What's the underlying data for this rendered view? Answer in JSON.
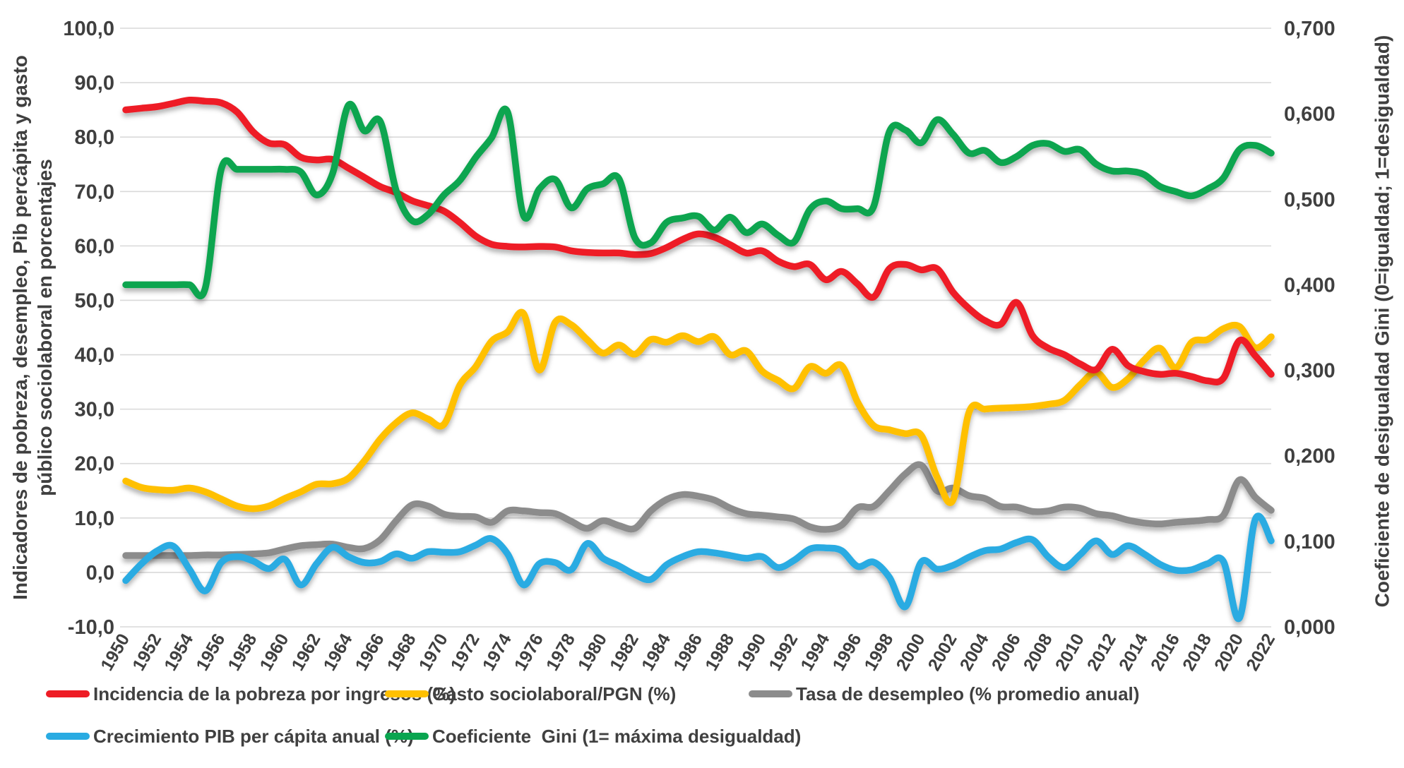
{
  "chart_data": {
    "type": "line",
    "title": "",
    "colors": {
      "poverty": "#ee1c25",
      "social_spending": "#ffc000",
      "unemployment": "#8c8c8c",
      "gdp_growth": "#29abe2",
      "gini": "#0aa550",
      "gridline": "#d9d9d9",
      "text": "#3f3f3f"
    },
    "years": [
      1950,
      1951,
      1952,
      1953,
      1954,
      1955,
      1956,
      1957,
      1958,
      1959,
      1960,
      1961,
      1962,
      1963,
      1964,
      1965,
      1966,
      1967,
      1968,
      1969,
      1970,
      1971,
      1972,
      1973,
      1974,
      1975,
      1976,
      1977,
      1978,
      1979,
      1980,
      1981,
      1982,
      1983,
      1984,
      1985,
      1986,
      1987,
      1988,
      1989,
      1990,
      1991,
      1992,
      1993,
      1994,
      1995,
      1996,
      1997,
      1998,
      1999,
      2000,
      2001,
      2002,
      2003,
      2004,
      2005,
      2006,
      2007,
      2008,
      2009,
      2010,
      2011,
      2012,
      2013,
      2014,
      2015,
      2016,
      2017,
      2018,
      2019,
      2020,
      2021,
      2022
    ],
    "x_tick_labels": [
      "1950",
      "1952",
      "1954",
      "1956",
      "1958",
      "1960",
      "1962",
      "1964",
      "1966",
      "1968",
      "1970",
      "1972",
      "1974",
      "1976",
      "1978",
      "1980",
      "1982",
      "1984",
      "1986",
      "1988",
      "1990",
      "1992",
      "1994",
      "1996",
      "1998",
      "2000",
      "2002",
      "2004",
      "2006",
      "2008",
      "2010",
      "2012",
      "2014",
      "2016",
      "2018",
      "2020",
      "2022"
    ],
    "left_axis": {
      "title": "Indicadores de pobreza, desempleo, Pib percápita y gasto público sociolaboral en porcentajes",
      "min": -10,
      "max": 100,
      "tick_step": 10,
      "tick_labels": [
        "100,0",
        "90,0",
        "80,0",
        "70,0",
        "60,0",
        "50,0",
        "40,0",
        "30,0",
        "20,0",
        "10,0",
        "0,0",
        "-10,0"
      ]
    },
    "right_axis": {
      "title": "Coeficiente de desigualdad Gini (0=igualdad; 1=desigualdad)",
      "min": 0.0,
      "max": 0.7,
      "tick_step": 0.1,
      "tick_labels": [
        "0,700",
        "0,600",
        "0,500",
        "0,400",
        "0,300",
        "0,200",
        "0,100",
        "0,000"
      ]
    },
    "grid": true,
    "legend_position": "bottom",
    "series": [
      {
        "name": "Incidencia de la pobreza por ingresos (%)",
        "axis": "left",
        "color_key": "poverty",
        "values": [
          85.0,
          85.3,
          85.6,
          86.2,
          86.8,
          86.6,
          86.3,
          84.6,
          81.0,
          78.9,
          78.6,
          76.3,
          75.8,
          75.9,
          74.3,
          72.6,
          70.9,
          69.8,
          68.3,
          67.4,
          66.4,
          64.3,
          61.8,
          60.3,
          59.9,
          59.8,
          59.9,
          59.8,
          59.1,
          58.8,
          58.7,
          58.7,
          58.4,
          58.6,
          59.7,
          61.2,
          62.2,
          61.6,
          60.2,
          58.7,
          59.1,
          57.2,
          56.2,
          56.6,
          53.8,
          55.3,
          53.0,
          50.6,
          55.8,
          56.6,
          55.6,
          55.8,
          51.5,
          48.5,
          46.3,
          45.6,
          49.6,
          43.5,
          41.2,
          40.0,
          38.3,
          37.3,
          41.0,
          38.0,
          36.9,
          36.4,
          36.6,
          36.0,
          35.2,
          35.7,
          42.6,
          39.8,
          36.4
        ]
      },
      {
        "name": "Gasto sociolaboral/PGN (%)",
        "axis": "left",
        "color_key": "social_spending",
        "values": [
          16.8,
          15.6,
          15.2,
          15.1,
          15.5,
          14.8,
          13.5,
          12.2,
          11.7,
          12.2,
          13.6,
          14.8,
          16.2,
          16.3,
          17.3,
          20.5,
          24.5,
          27.5,
          29.3,
          28.2,
          27.2,
          34.4,
          37.8,
          42.5,
          44.2,
          47.6,
          37.2,
          46.0,
          45.5,
          42.8,
          40.3,
          41.8,
          40.1,
          42.8,
          42.3,
          43.5,
          42.4,
          43.3,
          40.0,
          40.7,
          37.0,
          35.3,
          33.8,
          37.8,
          36.6,
          38.0,
          31.3,
          27.0,
          26.2,
          25.5,
          25.2,
          17.5,
          13.3,
          29.4,
          30.0,
          30.2,
          30.3,
          30.5,
          30.9,
          31.6,
          34.5,
          36.8,
          34.0,
          35.6,
          39.0,
          41.2,
          37.6,
          42.3,
          42.8,
          44.8,
          45.2,
          41.3,
          43.3
        ]
      },
      {
        "name": "Tasa de desempleo (% promedio anual)",
        "axis": "left",
        "color_key": "unemployment",
        "values": [
          3.1,
          3.1,
          3.1,
          3.1,
          3.1,
          3.2,
          3.2,
          3.3,
          3.4,
          3.6,
          4.3,
          4.9,
          5.1,
          5.2,
          4.6,
          4.4,
          6.0,
          9.5,
          12.4,
          12.2,
          10.7,
          10.3,
          10.2,
          9.2,
          11.3,
          11.3,
          11.0,
          10.8,
          9.4,
          8.1,
          9.5,
          8.6,
          8.1,
          11.3,
          13.4,
          14.3,
          14.0,
          13.3,
          11.8,
          10.8,
          10.5,
          10.2,
          9.8,
          8.4,
          7.9,
          8.7,
          11.9,
          12.1,
          15.0,
          18.1,
          19.7,
          15.0,
          15.5,
          14.1,
          13.6,
          12.1,
          12.0,
          11.2,
          11.3,
          12.0,
          11.8,
          10.8,
          10.4,
          9.6,
          9.1,
          8.9,
          9.2,
          9.4,
          9.7,
          10.5,
          17.0,
          13.8,
          11.4
        ]
      },
      {
        "name": "Crecimiento PIB per cápita anual (%)",
        "axis": "left",
        "color_key": "gdp_growth",
        "values": [
          -1.5,
          1.6,
          4.0,
          4.8,
          0.6,
          -3.4,
          1.8,
          2.9,
          2.1,
          0.7,
          2.4,
          -2.3,
          1.6,
          4.6,
          2.9,
          1.8,
          2.0,
          3.4,
          2.6,
          3.8,
          3.7,
          3.8,
          5.0,
          6.2,
          3.4,
          -2.3,
          1.6,
          1.8,
          0.5,
          5.3,
          2.6,
          1.2,
          -0.4,
          -1.3,
          1.4,
          2.9,
          3.8,
          3.6,
          3.1,
          2.6,
          2.9,
          0.9,
          2.2,
          4.3,
          4.5,
          4.0,
          1.1,
          1.9,
          -0.9,
          -6.3,
          1.9,
          0.6,
          1.3,
          2.8,
          4.0,
          4.3,
          5.5,
          6.0,
          2.8,
          0.9,
          3.3,
          5.8,
          3.3,
          4.9,
          3.4,
          1.5,
          0.4,
          0.5,
          1.6,
          2.0,
          -8.4,
          9.8,
          5.8
        ]
      },
      {
        "name": "Coeficiente  Gini (1= máxima desigualdad)",
        "axis": "right",
        "color_key": "gini",
        "values": [
          0.4,
          0.4,
          0.4,
          0.4,
          0.4,
          0.396,
          0.535,
          0.535,
          0.535,
          0.535,
          0.535,
          0.532,
          0.505,
          0.53,
          0.61,
          0.58,
          0.591,
          0.51,
          0.475,
          0.482,
          0.505,
          0.522,
          0.549,
          0.572,
          0.602,
          0.481,
          0.512,
          0.523,
          0.49,
          0.512,
          0.518,
          0.524,
          0.455,
          0.449,
          0.473,
          0.478,
          0.48,
          0.464,
          0.479,
          0.461,
          0.471,
          0.458,
          0.45,
          0.488,
          0.498,
          0.489,
          0.489,
          0.491,
          0.579,
          0.581,
          0.566,
          0.593,
          0.576,
          0.554,
          0.557,
          0.543,
          0.55,
          0.563,
          0.565,
          0.556,
          0.558,
          0.541,
          0.533,
          0.533,
          0.529,
          0.515,
          0.509,
          0.504,
          0.512,
          0.525,
          0.558,
          0.563,
          0.554
        ]
      }
    ],
    "draw_order": [
      2,
      3,
      1,
      0,
      4
    ],
    "legend_rows": [
      [
        0,
        1,
        2
      ],
      [
        3,
        4
      ]
    ]
  }
}
